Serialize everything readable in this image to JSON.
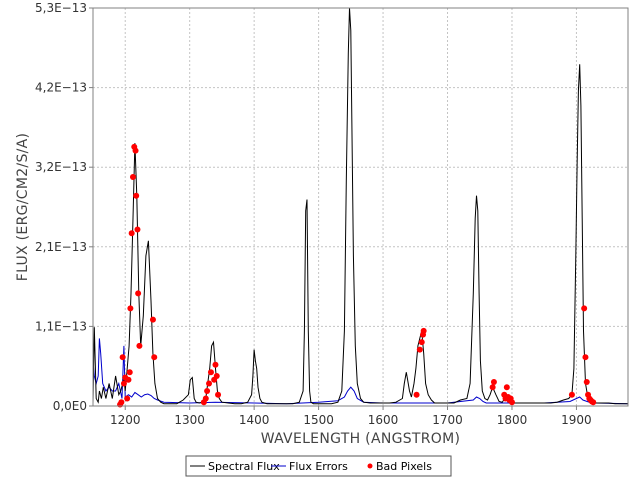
{
  "chart_data": {
    "type": "line",
    "xlabel": "WAVELENGTH (ANGSTROM)",
    "ylabel": "FLUX (ERG/CM2/S/A)",
    "xlim": [
      1150,
      1980
    ],
    "ylim": [
      0,
      5.3e-13
    ],
    "grid": true,
    "legend_position": "bottom",
    "x_ticks": [
      1200,
      1300,
      1400,
      1500,
      1600,
      1700,
      1800,
      1900
    ],
    "x_tick_labels": [
      "1200",
      "1300",
      "1400",
      "1500",
      "1600",
      "1700",
      "1800",
      "1900"
    ],
    "y_ticks": [
      0,
      1.06e-13,
      2.12e-13,
      3.18e-13,
      4.24e-13,
      5.3e-13
    ],
    "y_tick_labels": [
      "0,0E0",
      "1,1E−13",
      "2,1E−13",
      "3,2E−13",
      "4,2E−13",
      "5,3E−13"
    ],
    "colors": {
      "flux": "#000000",
      "errors": "#0000cc",
      "bad": "#ff0000"
    },
    "series": [
      {
        "name": "Spectral Flux",
        "x": [
          1150,
          1152,
          1155,
          1158,
          1160,
          1163,
          1166,
          1170,
          1175,
          1180,
          1185,
          1190,
          1193,
          1196,
          1198,
          1200,
          1203,
          1206,
          1209,
          1212,
          1215,
          1218,
          1221,
          1224,
          1228,
          1232,
          1236,
          1240,
          1243,
          1246,
          1250,
          1255,
          1260,
          1270,
          1280,
          1290,
          1298,
          1301,
          1304,
          1307,
          1310,
          1315,
          1320,
          1325,
          1328,
          1331,
          1334,
          1337,
          1340,
          1343,
          1346,
          1350,
          1360,
          1370,
          1380,
          1390,
          1396,
          1398,
          1400,
          1402,
          1404,
          1406,
          1409,
          1412,
          1420,
          1430,
          1440,
          1450,
          1460,
          1470,
          1476,
          1478,
          1480,
          1482,
          1484,
          1486,
          1488,
          1492,
          1500,
          1510,
          1520,
          1530,
          1536,
          1540,
          1543,
          1546,
          1548,
          1550,
          1552,
          1554,
          1557,
          1560,
          1565,
          1570,
          1580,
          1590,
          1600,
          1610,
          1620,
          1630,
          1633,
          1636,
          1638,
          1641,
          1644,
          1648,
          1651,
          1654,
          1657,
          1660,
          1663,
          1666,
          1670,
          1675,
          1680,
          1690,
          1700,
          1710,
          1720,
          1730,
          1735,
          1740,
          1743,
          1745,
          1747,
          1749,
          1751,
          1754,
          1758,
          1762,
          1766,
          1770,
          1775,
          1780,
          1785,
          1790,
          1795,
          1800,
          1810,
          1820,
          1830,
          1840,
          1850,
          1860,
          1870,
          1880,
          1888,
          1893,
          1896,
          1899,
          1901,
          1903,
          1905,
          1907,
          1909,
          1911,
          1914,
          1917,
          1920,
          1925,
          1930,
          1940,
          1950,
          1960,
          1970,
          1980
        ],
        "values": [
          3e-15,
          1.05e-13,
          1e-14,
          5e-15,
          2e-14,
          1e-14,
          2.5e-14,
          1e-14,
          3e-14,
          1e-14,
          4e-14,
          1.5e-14,
          2e-14,
          3e-14,
          4e-14,
          2e-14,
          5e-14,
          8e-14,
          1.5e-13,
          2.5e-13,
          3.5e-13,
          2.8e-13,
          1.5e-13,
          8e-14,
          1.2e-13,
          2e-13,
          2.2e-13,
          1.4e-13,
          7e-14,
          3e-14,
          1e-14,
          5e-15,
          3e-15,
          3e-15,
          3e-15,
          8e-15,
          1.5e-14,
          3.5e-14,
          3.8e-14,
          1e-14,
          5e-15,
          4e-15,
          5e-15,
          1e-14,
          3e-14,
          5e-14,
          8e-14,
          8.5e-14,
          5e-14,
          2e-14,
          1e-14,
          5e-15,
          4e-15,
          3e-15,
          3e-15,
          5e-15,
          1.5e-14,
          4e-14,
          7.5e-14,
          6e-14,
          5e-14,
          2.5e-14,
          1e-14,
          5e-15,
          3e-15,
          3e-15,
          3e-15,
          3e-15,
          3e-15,
          5e-15,
          2e-14,
          1e-13,
          2.6e-13,
          2.75e-13,
          1e-13,
          2e-14,
          5e-15,
          3e-15,
          3e-15,
          3e-15,
          3e-15,
          5e-15,
          2e-14,
          1e-13,
          3e-13,
          4.7e-13,
          5.3e-13,
          5e-13,
          3.5e-13,
          2e-13,
          8e-14,
          3e-14,
          1e-14,
          5e-15,
          4e-15,
          4e-15,
          4e-15,
          4e-15,
          5e-15,
          1e-14,
          3e-14,
          4.5e-14,
          3.5e-14,
          2e-14,
          1.2e-14,
          3e-14,
          5e-14,
          8e-14,
          9e-14,
          1e-13,
          7e-14,
          3e-14,
          1.5e-14,
          8e-15,
          4e-15,
          4e-15,
          4e-15,
          4e-15,
          8e-15,
          1e-14,
          3e-14,
          1.5e-13,
          2.5e-13,
          2.8e-13,
          2.6e-13,
          1.5e-13,
          6e-14,
          2e-14,
          1e-14,
          8e-15,
          1.5e-14,
          2.5e-14,
          1.5e-14,
          6e-15,
          5e-15,
          1.2e-14,
          6e-15,
          4e-15,
          4e-15,
          4e-15,
          4e-15,
          4e-15,
          4e-15,
          4e-15,
          5e-15,
          8e-15,
          1e-14,
          1.5e-14,
          5e-14,
          2e-13,
          3.2e-13,
          4.2e-13,
          4.55e-13,
          4e-13,
          2.5e-13,
          1e-13,
          3e-14,
          1.5e-14,
          8e-15,
          5e-15,
          4e-15,
          4e-15,
          4e-15,
          3e-15,
          3e-15,
          3e-15
        ]
      },
      {
        "name": "Flux Errors",
        "x": [
          1150,
          1152,
          1155,
          1158,
          1160,
          1162,
          1165,
          1170,
          1175,
          1180,
          1185,
          1190,
          1195,
          1198,
          1200,
          1205,
          1210,
          1215,
          1220,
          1225,
          1230,
          1235,
          1240,
          1245,
          1250,
          1260,
          1300,
          1340,
          1400,
          1450,
          1500,
          1530,
          1540,
          1545,
          1550,
          1555,
          1560,
          1570,
          1600,
          1650,
          1700,
          1740,
          1745,
          1750,
          1755,
          1760,
          1800,
          1850,
          1890,
          1900,
          1905,
          1910,
          1920,
          1930,
          1980
        ],
        "values": [
          6e-14,
          4e-14,
          3e-14,
          4e-14,
          9e-14,
          7e-14,
          3e-14,
          2e-14,
          2.5e-14,
          2e-14,
          2e-14,
          3e-14,
          1e-14,
          8e-14,
          1.2e-14,
          1.5e-14,
          1.2e-14,
          1.8e-14,
          1.5e-14,
          1.2e-14,
          1.5e-14,
          1.6e-14,
          1.4e-14,
          1e-14,
          8e-15,
          5e-15,
          4e-15,
          5e-15,
          4e-15,
          3e-15,
          5e-15,
          7e-15,
          1.2e-14,
          2e-14,
          2.5e-14,
          2e-14,
          1e-14,
          5e-15,
          4e-15,
          4e-15,
          4e-15,
          8e-15,
          1.2e-14,
          1e-14,
          6e-15,
          4e-15,
          4e-15,
          4e-15,
          6e-15,
          1e-14,
          1.2e-14,
          8e-15,
          5e-15,
          4e-15,
          3e-15
        ]
      },
      {
        "name": "Bad Pixels",
        "x": [
          1192,
          1194,
          1196,
          1198,
          1200,
          1203,
          1205,
          1207,
          1208,
          1210,
          1212,
          1214,
          1216,
          1217,
          1219,
          1220,
          1222,
          1243,
          1245,
          1322,
          1325,
          1327,
          1330,
          1333,
          1338,
          1340,
          1342,
          1344,
          1652,
          1657,
          1660,
          1662,
          1663,
          1770,
          1772,
          1788,
          1790,
          1792,
          1794,
          1796,
          1798,
          1800,
          1893,
          1912,
          1914,
          1916,
          1918,
          1920,
          1922,
          1924,
          1926
        ],
        "values": [
          2e-15,
          5e-15,
          6.5e-14,
          3e-14,
          3.8e-14,
          1e-14,
          3.5e-14,
          4.5e-14,
          1.3e-13,
          2.3e-13,
          3.05e-13,
          3.45e-13,
          3.4e-13,
          2.8e-13,
          2.35e-13,
          1.5e-13,
          8e-14,
          1.15e-13,
          6.5e-14,
          5e-15,
          1e-14,
          2e-14,
          3e-14,
          4.5e-14,
          3.5e-14,
          5.5e-14,
          4e-14,
          1.5e-14,
          1.5e-14,
          7.5e-14,
          8.5e-14,
          9.5e-14,
          1e-13,
          2.5e-14,
          3.2e-14,
          1.5e-14,
          1e-14,
          2.5e-14,
          1.2e-14,
          8e-15,
          1e-14,
          5e-15,
          1.5e-14,
          1.3e-13,
          6.5e-14,
          3.2e-14,
          1.5e-14,
          1e-14,
          8e-15,
          6e-15,
          5e-15
        ]
      }
    ],
    "legend": [
      "Spectral Flux",
      "Flux Errors",
      "Bad Pixels"
    ]
  }
}
